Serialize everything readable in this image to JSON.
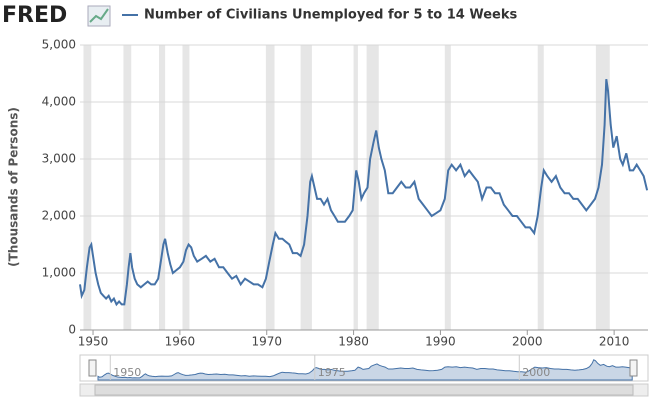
{
  "logo": "FRED",
  "chart_data": {
    "type": "line",
    "ylabel": "(Thousands of Persons)",
    "xlim": [
      1948.5,
      2013.9
    ],
    "ylim": [
      0,
      5000
    ],
    "xticks": [
      1950,
      1960,
      1970,
      1980,
      1990,
      2000,
      2010
    ],
    "yticks": [
      0,
      {
        "value": 1000,
        "label": "1,000"
      },
      {
        "value": 2000,
        "label": "2,000"
      },
      {
        "value": 3000,
        "label": "3,000"
      },
      {
        "value": 4000,
        "label": "4,000"
      },
      {
        "value": 5000,
        "label": "5,000"
      }
    ],
    "grid": true,
    "recessions": [
      [
        1948.9,
        1949.8
      ],
      [
        1953.5,
        1954.4
      ],
      [
        1957.6,
        1958.3
      ],
      [
        1960.3,
        1961.1
      ],
      [
        1969.9,
        1970.9
      ],
      [
        1973.9,
        1975.2
      ],
      [
        1980.0,
        1980.5
      ],
      [
        1981.5,
        1982.9
      ],
      [
        1990.5,
        1991.2
      ],
      [
        2001.2,
        2001.9
      ],
      [
        2007.9,
        2009.5
      ]
    ],
    "x": [
      1948.5,
      1948.7,
      1949.0,
      1949.3,
      1949.6,
      1949.8,
      1950.0,
      1950.3,
      1950.6,
      1950.9,
      1951.2,
      1951.5,
      1951.8,
      1952.1,
      1952.4,
      1952.7,
      1953.0,
      1953.3,
      1953.6,
      1953.9,
      1954.1,
      1954.3,
      1954.5,
      1954.8,
      1955.1,
      1955.5,
      1955.9,
      1956.3,
      1956.7,
      1957.1,
      1957.5,
      1957.8,
      1958.1,
      1958.3,
      1958.6,
      1958.9,
      1959.2,
      1959.6,
      1960.0,
      1960.4,
      1960.7,
      1961.0,
      1961.3,
      1961.6,
      1962.0,
      1962.5,
      1963.0,
      1963.5,
      1964.0,
      1964.5,
      1965.0,
      1965.5,
      1966.0,
      1966.5,
      1967.0,
      1967.5,
      1968.0,
      1968.5,
      1969.0,
      1969.5,
      1969.9,
      1970.3,
      1970.7,
      1971.0,
      1971.4,
      1971.8,
      1972.2,
      1972.6,
      1973.0,
      1973.5,
      1973.9,
      1974.3,
      1974.7,
      1975.0,
      1975.2,
      1975.5,
      1975.8,
      1976.2,
      1976.6,
      1977.0,
      1977.4,
      1977.8,
      1978.2,
      1978.6,
      1979.0,
      1979.5,
      1979.9,
      1980.3,
      1980.6,
      1980.9,
      1981.2,
      1981.6,
      1981.9,
      1982.3,
      1982.6,
      1982.9,
      1983.2,
      1983.6,
      1984.0,
      1984.5,
      1985.0,
      1985.5,
      1986.0,
      1986.5,
      1987.0,
      1987.5,
      1988.0,
      1988.5,
      1989.0,
      1989.5,
      1990.0,
      1990.5,
      1990.9,
      1991.3,
      1991.8,
      1992.3,
      1992.8,
      1993.3,
      1993.8,
      1994.3,
      1994.8,
      1995.3,
      1995.8,
      1996.3,
      1996.8,
      1997.3,
      1997.8,
      1998.3,
      1998.8,
      1999.3,
      1999.8,
      2000.3,
      2000.8,
      2001.2,
      2001.6,
      2001.9,
      2002.3,
      2002.8,
      2003.3,
      2003.8,
      2004.3,
      2004.8,
      2005.3,
      2005.8,
      2006.3,
      2006.8,
      2007.3,
      2007.8,
      2008.2,
      2008.6,
      2008.9,
      2009.1,
      2009.3,
      2009.6,
      2009.9,
      2010.3,
      2010.7,
      2011.0,
      2011.4,
      2011.8,
      2012.2,
      2012.6,
      2013.0,
      2013.4,
      2013.8
    ],
    "series": [
      {
        "name": "Number of Civilians Unemployed for 5 to 14 Weeks",
        "color": "#4572a7",
        "values": [
          800,
          600,
          700,
          1100,
          1450,
          1500,
          1300,
          1000,
          800,
          650,
          600,
          550,
          600,
          500,
          550,
          450,
          500,
          450,
          450,
          800,
          1100,
          1350,
          1100,
          900,
          800,
          750,
          800,
          850,
          800,
          800,
          900,
          1200,
          1500,
          1600,
          1350,
          1150,
          1000,
          1050,
          1100,
          1200,
          1400,
          1500,
          1450,
          1300,
          1200,
          1250,
          1300,
          1200,
          1250,
          1100,
          1100,
          1000,
          900,
          950,
          800,
          900,
          850,
          800,
          800,
          750,
          900,
          1200,
          1500,
          1700,
          1600,
          1600,
          1550,
          1500,
          1350,
          1350,
          1300,
          1500,
          2000,
          2600,
          2700,
          2500,
          2300,
          2300,
          2200,
          2300,
          2100,
          2000,
          1900,
          1900,
          1900,
          2000,
          2100,
          2800,
          2600,
          2300,
          2400,
          2500,
          3000,
          3300,
          3500,
          3200,
          3000,
          2800,
          2400,
          2400,
          2500,
          2600,
          2500,
          2500,
          2600,
          2300,
          2200,
          2100,
          2000,
          2050,
          2100,
          2300,
          2800,
          2900,
          2800,
          2900,
          2700,
          2800,
          2700,
          2600,
          2300,
          2500,
          2500,
          2400,
          2400,
          2200,
          2100,
          2000,
          2000,
          1900,
          1800,
          1800,
          1700,
          2000,
          2500,
          2800,
          2700,
          2600,
          2700,
          2500,
          2400,
          2400,
          2300,
          2300,
          2200,
          2100,
          2200,
          2300,
          2500,
          2900,
          3600,
          4400,
          4200,
          3600,
          3200,
          3400,
          3000,
          2900,
          3100,
          2800,
          2800,
          2900,
          2800,
          2700,
          2450
        ]
      }
    ]
  },
  "navigator": {
    "xticks": [
      1950,
      1975,
      2000
    ]
  }
}
